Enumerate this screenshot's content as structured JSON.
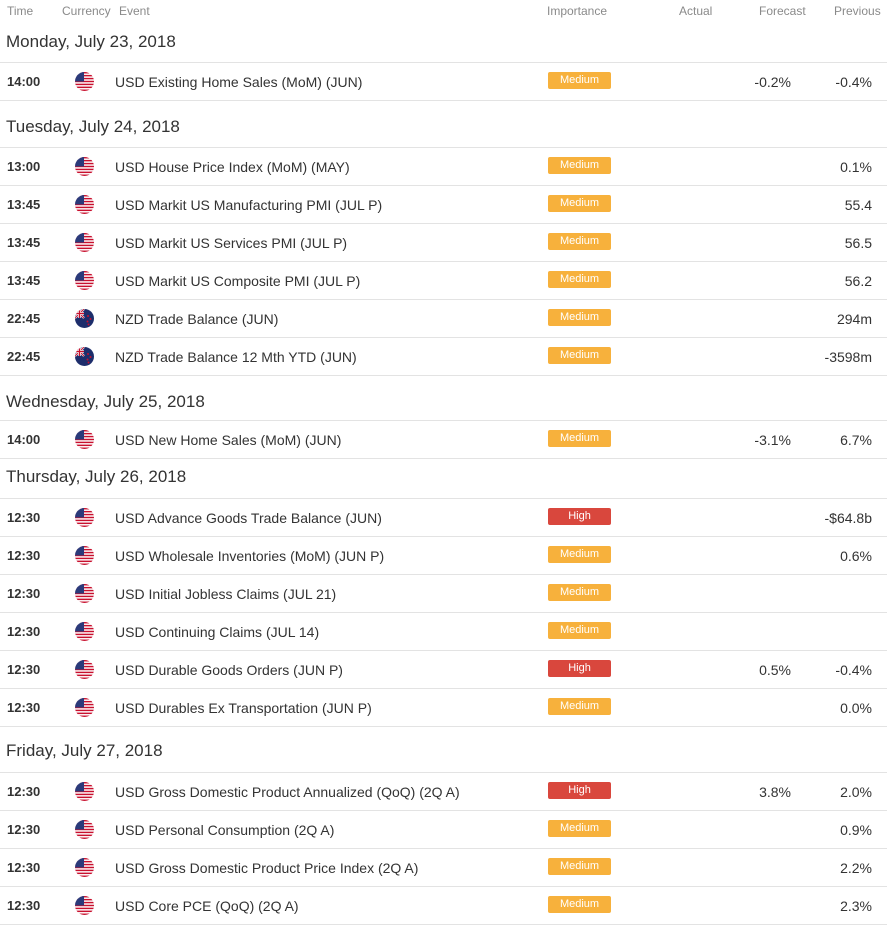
{
  "header": {
    "time": "Time",
    "currency": "Currency",
    "event": "Event",
    "importance": "Importance",
    "actual": "Actual",
    "forecast": "Forecast",
    "previous": "Previous"
  },
  "colors": {
    "medium": "#f7b13c",
    "high": "#d9473d"
  },
  "days": [
    {
      "label": "Monday, July 23, 2018",
      "events": [
        {
          "time": "14:00",
          "flag": "us-flag-icon",
          "event": "USD Existing Home Sales (MoM) (JUN)",
          "importance": "Medium",
          "actual": "",
          "forecast": "-0.2%",
          "previous": "-0.4%"
        }
      ]
    },
    {
      "label": "Tuesday, July 24, 2018",
      "events": [
        {
          "time": "13:00",
          "flag": "us-flag-icon",
          "event": "USD House Price Index (MoM) (MAY)",
          "importance": "Medium",
          "actual": "",
          "forecast": "",
          "previous": "0.1%"
        },
        {
          "time": "13:45",
          "flag": "us-flag-icon",
          "event": "USD Markit US Manufacturing PMI (JUL P)",
          "importance": "Medium",
          "actual": "",
          "forecast": "",
          "previous": "55.4"
        },
        {
          "time": "13:45",
          "flag": "us-flag-icon",
          "event": "USD Markit US Services PMI (JUL P)",
          "importance": "Medium",
          "actual": "",
          "forecast": "",
          "previous": "56.5"
        },
        {
          "time": "13:45",
          "flag": "us-flag-icon",
          "event": "USD Markit US Composite PMI (JUL P)",
          "importance": "Medium",
          "actual": "",
          "forecast": "",
          "previous": "56.2"
        },
        {
          "time": "22:45",
          "flag": "nz-flag-icon",
          "event": "NZD Trade Balance (JUN)",
          "importance": "Medium",
          "actual": "",
          "forecast": "",
          "previous": "294m"
        },
        {
          "time": "22:45",
          "flag": "nz-flag-icon",
          "event": "NZD Trade Balance 12 Mth YTD (JUN)",
          "importance": "Medium",
          "actual": "",
          "forecast": "",
          "previous": "-3598m"
        }
      ]
    },
    {
      "label": "Wednesday, July 25, 2018",
      "events": [
        {
          "time": "14:00",
          "flag": "us-flag-icon",
          "event": "USD New Home Sales (MoM) (JUN)",
          "importance": "Medium",
          "actual": "",
          "forecast": "-3.1%",
          "previous": "6.7%"
        }
      ]
    },
    {
      "label": "Thursday, July 26, 2018",
      "events": [
        {
          "time": "12:30",
          "flag": "us-flag-icon",
          "event": "USD Advance Goods Trade Balance (JUN)",
          "importance": "High",
          "actual": "",
          "forecast": "",
          "previous": "-$64.8b"
        },
        {
          "time": "12:30",
          "flag": "us-flag-icon",
          "event": "USD Wholesale Inventories (MoM) (JUN P)",
          "importance": "Medium",
          "actual": "",
          "forecast": "",
          "previous": "0.6%"
        },
        {
          "time": "12:30",
          "flag": "us-flag-icon",
          "event": "USD Initial Jobless Claims (JUL 21)",
          "importance": "Medium",
          "actual": "",
          "forecast": "",
          "previous": ""
        },
        {
          "time": "12:30",
          "flag": "us-flag-icon",
          "event": "USD Continuing Claims (JUL 14)",
          "importance": "Medium",
          "actual": "",
          "forecast": "",
          "previous": ""
        },
        {
          "time": "12:30",
          "flag": "us-flag-icon",
          "event": "USD Durable Goods Orders (JUN P)",
          "importance": "High",
          "actual": "",
          "forecast": "0.5%",
          "previous": "-0.4%"
        },
        {
          "time": "12:30",
          "flag": "us-flag-icon",
          "event": "USD Durables Ex Transportation (JUN P)",
          "importance": "Medium",
          "actual": "",
          "forecast": "",
          "previous": "0.0%"
        }
      ]
    },
    {
      "label": "Friday, July 27, 2018",
      "events": [
        {
          "time": "12:30",
          "flag": "us-flag-icon",
          "event": "USD Gross Domestic Product Annualized (QoQ) (2Q A)",
          "importance": "High",
          "actual": "",
          "forecast": "3.8%",
          "previous": "2.0%"
        },
        {
          "time": "12:30",
          "flag": "us-flag-icon",
          "event": "USD Personal Consumption (2Q A)",
          "importance": "Medium",
          "actual": "",
          "forecast": "",
          "previous": "0.9%"
        },
        {
          "time": "12:30",
          "flag": "us-flag-icon",
          "event": "USD Gross Domestic Product Price Index (2Q A)",
          "importance": "Medium",
          "actual": "",
          "forecast": "",
          "previous": "2.2%"
        },
        {
          "time": "12:30",
          "flag": "us-flag-icon",
          "event": "USD Core PCE (QoQ) (2Q A)",
          "importance": "Medium",
          "actual": "",
          "forecast": "",
          "previous": "2.3%"
        }
      ]
    }
  ]
}
